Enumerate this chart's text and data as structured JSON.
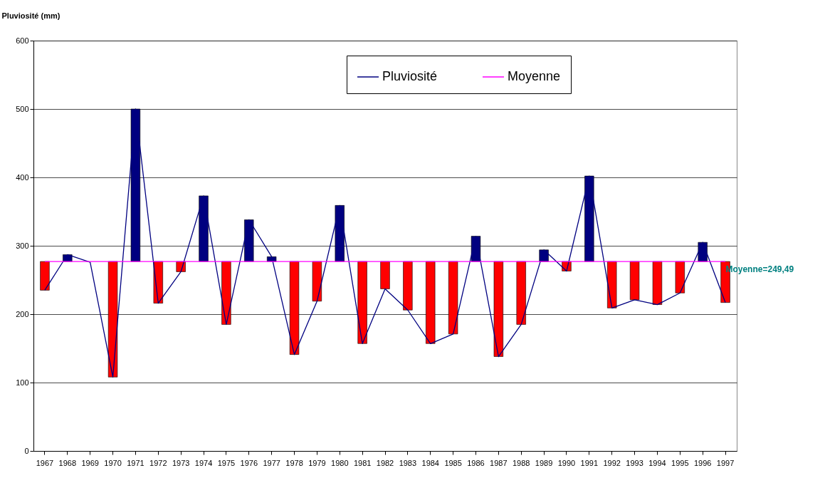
{
  "chart_data": {
    "type": "bar",
    "ylabel": "Pluviosité (mm)",
    "categories": [
      "1967",
      "1968",
      "1969",
      "1970",
      "1971",
      "1972",
      "1973",
      "1974",
      "1975",
      "1976",
      "1977",
      "1978",
      "1979",
      "1980",
      "1981",
      "1982",
      "1983",
      "1984",
      "1985",
      "1986",
      "1987",
      "1988",
      "1989",
      "1990",
      "1991",
      "1992",
      "1993",
      "1994",
      "1995",
      "1996",
      "1997"
    ],
    "ylim": [
      0,
      600
    ],
    "yticks": [
      0,
      100,
      200,
      300,
      400,
      500,
      600
    ],
    "grid": "y",
    "legend": "top right",
    "annotations": [
      {
        "text": "Moyenne=249,49",
        "x": "1997",
        "y": 277
      }
    ],
    "series": [
      {
        "base": [
          277,
          277,
          null,
          277,
          277,
          277,
          277,
          277,
          277,
          277,
          277,
          277,
          277,
          277,
          277,
          277,
          277,
          277,
          277,
          277,
          277,
          277,
          277,
          277,
          277,
          277,
          277,
          277,
          277,
          277,
          277
        ],
        "values": [
          -42,
          10,
          null,
          -169,
          223,
          -61,
          -15,
          96,
          -92,
          61,
          7,
          -136,
          -58,
          82,
          -120,
          -40,
          -71,
          -120,
          -106,
          37,
          -139,
          -92,
          17,
          -14,
          125,
          -68,
          -56,
          -63,
          -46,
          28,
          -60
        ],
        "colors": [
          "#ff0000",
          "#000080",
          "#ff0000",
          "#ff0000",
          "#000080",
          "#ff0000",
          "#ff0000",
          "#000080",
          "#ff0000",
          "#000080",
          "#000080",
          "#ff0000",
          "#ff0000",
          "#000080",
          "#ff0000",
          "#ff0000",
          "#ff0000",
          "#ff0000",
          "#ff0000",
          "#000080",
          "#ff0000",
          "#ff0000",
          "#000080",
          "#ff0000",
          "#000080",
          "#ff0000",
          "#ff0000",
          "#ff0000",
          "#ff0000",
          "#000080",
          "#ff0000"
        ]
      },
      {
        "type": "line",
        "name": "Pluviosité",
        "color": "#000080",
        "values": [
          235,
          287,
          276,
          108,
          500,
          216,
          262,
          373,
          185,
          338,
          284,
          141,
          219,
          359,
          157,
          237,
          206,
          157,
          171,
          314,
          138,
          185,
          294,
          263,
          402,
          209,
          221,
          214,
          231,
          305,
          217
        ]
      },
      {
        "type": "line",
        "name": "Moyenne",
        "color": "#ff00ff",
        "values": [
          277,
          277,
          277,
          277,
          277,
          277,
          277,
          277,
          277,
          277,
          277,
          277,
          277,
          277,
          277,
          277,
          277,
          277,
          277,
          277,
          277,
          277,
          277,
          277,
          277,
          277,
          277,
          277,
          277,
          277,
          277
        ]
      }
    ]
  }
}
